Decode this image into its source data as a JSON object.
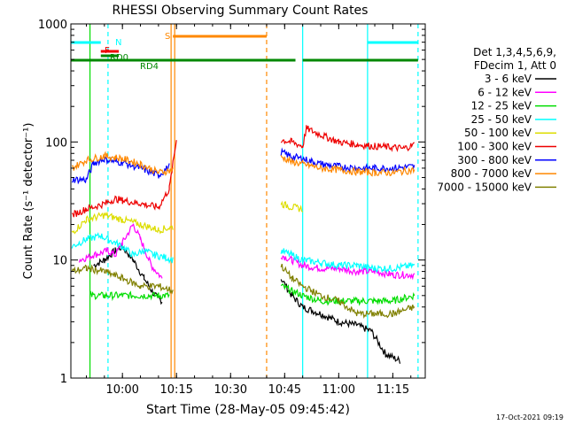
{
  "chart_data": {
    "type": "line",
    "title": "RHESSI Observing Summary Count Rates",
    "xlabel": "Start Time (28-May-05 09:45:42)",
    "ylabel": "Count Rate (s⁻¹ detector⁻¹)",
    "y_scale": "log",
    "ylim": [
      1,
      1000
    ],
    "xlim": [
      "09:45:42",
      "11:24"
    ],
    "x_ticks": [
      "10:00",
      "10:15",
      "10:30",
      "10:45",
      "11:00",
      "11:15"
    ],
    "y_ticks": [
      "1",
      "10",
      "100",
      "1000"
    ],
    "legend_header": [
      "Det 1,3,4,5,6,9,",
      "FDecim 1, Att 0"
    ],
    "legend_position": "right",
    "timestamp": "17-Oct-2021 09:19",
    "series": [
      {
        "name": "3 - 6 keV",
        "color": "#000000",
        "seg1": {
          "t": [
            "09:52",
            "09:55",
            "09:58",
            "10:00",
            "10:03",
            "10:06",
            "10:09",
            "10:11"
          ],
          "v": [
            9,
            10,
            12,
            13,
            10,
            7,
            5,
            4.5
          ]
        },
        "seg2": {
          "t": [
            "10:44",
            "10:47",
            "10:50",
            "10:55",
            "11:00",
            "11:05",
            "11:09",
            "11:13",
            "11:17"
          ],
          "v": [
            7,
            5,
            4,
            3.5,
            3,
            2.8,
            2.5,
            1.6,
            1.4
          ]
        }
      },
      {
        "name": "6 - 12 keV",
        "color": "#ff00ff",
        "seg1": {
          "t": [
            "09:48",
            "09:52",
            "09:56",
            "09:58",
            "10:00",
            "10:03",
            "10:05",
            "10:08",
            "10:11"
          ],
          "v": [
            10,
            11,
            12,
            11,
            14,
            20,
            15,
            9,
            7
          ]
        },
        "seg2": {
          "t": [
            "10:44",
            "10:47",
            "10:50",
            "10:55",
            "11:00",
            "11:05",
            "11:10",
            "11:15",
            "11:21"
          ],
          "v": [
            11,
            10,
            9,
            8.5,
            8.5,
            8,
            8,
            7.5,
            7.5
          ]
        }
      },
      {
        "name": "12 - 25 keV",
        "color": "#00dd00",
        "seg1": {
          "t": [
            "09:51",
            "09:55",
            "10:00",
            "10:05",
            "10:10",
            "10:13"
          ],
          "v": [
            5,
            5,
            5,
            5,
            5,
            5
          ]
        },
        "seg2": {
          "t": [
            "10:44",
            "10:47",
            "10:50",
            "10:55",
            "11:00",
            "11:05",
            "11:10",
            "11:15",
            "11:21"
          ],
          "v": [
            6,
            5.5,
            5,
            4.5,
            4.5,
            4.5,
            4.5,
            4.5,
            5
          ]
        }
      },
      {
        "name": "25 - 50 keV",
        "color": "#00ffff",
        "seg1": {
          "t": [
            "09:46",
            "09:50",
            "09:54",
            "09:58",
            "10:00",
            "10:03",
            "10:06",
            "10:09",
            "10:12",
            "10:14"
          ],
          "v": [
            13,
            15,
            16,
            14,
            13,
            11,
            12,
            11,
            10.5,
            10
          ]
        },
        "seg2": {
          "t": [
            "10:44",
            "10:47",
            "10:50",
            "10:55",
            "11:00",
            "11:05",
            "11:10",
            "11:15",
            "11:21"
          ],
          "v": [
            12,
            11,
            10,
            9.5,
            9,
            9,
            8.5,
            8.5,
            9
          ]
        }
      },
      {
        "name": "50 - 100 keV",
        "color": "#dddd00",
        "seg1": {
          "t": [
            "09:46",
            "09:50",
            "09:55",
            "10:00",
            "10:05",
            "10:10",
            "10:14"
          ],
          "v": [
            17,
            22,
            24,
            22,
            20,
            18,
            19
          ]
        },
        "seg2": {
          "t": [
            "10:44",
            "10:47",
            "10:50"
          ],
          "v": [
            30,
            28,
            27
          ]
        }
      },
      {
        "name": "100 - 300 keV",
        "color": "#ee0000",
        "seg1": {
          "t": [
            "09:46",
            "09:50",
            "09:55",
            "09:58",
            "10:00",
            "10:05",
            "10:10",
            "10:13",
            "10:15"
          ],
          "v": [
            24,
            27,
            30,
            33,
            32,
            30,
            28,
            40,
            105
          ]
        },
        "seg2": {
          "t": [
            "10:44",
            "10:47",
            "10:50",
            "10:51",
            "10:55",
            "11:00",
            "11:05",
            "11:10",
            "11:15",
            "11:18",
            "11:21"
          ],
          "v": [
            104,
            100,
            92,
            130,
            115,
            100,
            95,
            92,
            90,
            88,
            95
          ]
        }
      },
      {
        "name": "300 - 800 keV",
        "color": "#0000ff",
        "seg1": {
          "t": [
            "09:46",
            "09:50",
            "09:52",
            "09:55",
            "09:58",
            "10:00",
            "10:05",
            "10:10",
            "10:13"
          ],
          "v": [
            48,
            48,
            66,
            72,
            68,
            67,
            60,
            52,
            62
          ]
        },
        "seg2": {
          "t": [
            "10:44",
            "10:47",
            "10:50",
            "10:55",
            "11:00",
            "11:05",
            "11:10",
            "11:15",
            "11:21"
          ],
          "v": [
            82,
            75,
            72,
            65,
            62,
            60,
            60,
            60,
            62
          ]
        }
      },
      {
        "name": "800 - 7000 keV",
        "color": "#ff8800",
        "seg1": {
          "t": [
            "09:46",
            "09:50",
            "09:55",
            "09:58",
            "10:00",
            "10:05",
            "10:10",
            "10:14"
          ],
          "v": [
            60,
            70,
            76,
            74,
            72,
            65,
            55,
            58
          ]
        },
        "seg2": {
          "t": [
            "10:44",
            "10:47",
            "10:50",
            "10:55",
            "11:00",
            "11:05",
            "11:10",
            "11:15",
            "11:21"
          ],
          "v": [
            75,
            68,
            65,
            60,
            58,
            56,
            55,
            55,
            58
          ]
        }
      },
      {
        "name": "7000 - 15000 keV",
        "color": "#808000",
        "seg1": {
          "t": [
            "09:46",
            "09:50",
            "09:55",
            "10:00",
            "10:05",
            "10:10",
            "10:14"
          ],
          "v": [
            8,
            8.5,
            8,
            7,
            6,
            6,
            5.5
          ]
        },
        "seg2": {
          "t": [
            "10:44",
            "10:47",
            "10:50",
            "10:55",
            "11:00",
            "11:05",
            "11:10",
            "11:15",
            "11:21"
          ],
          "v": [
            9,
            7,
            6,
            5,
            4.5,
            3.5,
            3.5,
            3.5,
            4
          ]
        }
      }
    ],
    "flags": [
      {
        "label": "N",
        "color": "#00ffff",
        "segments": [
          [
            "09:45:42",
            "09:54"
          ],
          [
            "11:08",
            "11:22"
          ]
        ]
      },
      {
        "label": "F",
        "color": "#ee0000",
        "segments": [
          [
            "09:54",
            "09:59"
          ]
        ]
      },
      {
        "label": "RD0",
        "color": "#008800",
        "segments": [
          [
            "09:54",
            "09:59"
          ]
        ]
      },
      {
        "label": "S",
        "color": "#ff8800",
        "segments": [
          [
            "10:14",
            "10:40"
          ]
        ]
      },
      {
        "label": "RD4",
        "color": "#008800",
        "segments": [
          [
            "09:45:42",
            "10:40"
          ],
          [
            "10:40",
            "10:48"
          ],
          [
            "10:50",
            "11:22"
          ]
        ]
      }
    ],
    "vlines": [
      {
        "t": "09:56",
        "color": "#00ffff",
        "style": "dashed"
      },
      {
        "t": "10:13:30",
        "color": "#ff8800",
        "style": "solid"
      },
      {
        "t": "10:14:30",
        "color": "#ff8800",
        "style": "solid"
      },
      {
        "t": "10:40",
        "color": "#ff8800",
        "style": "dashed"
      },
      {
        "t": "10:50",
        "color": "#00ffff",
        "style": "solid"
      },
      {
        "t": "11:08",
        "color": "#00ffff",
        "style": "solid"
      },
      {
        "t": "11:22",
        "color": "#00ffff",
        "style": "dashed"
      },
      {
        "t": "09:51",
        "color": "#00dd00",
        "style": "solid"
      }
    ]
  }
}
